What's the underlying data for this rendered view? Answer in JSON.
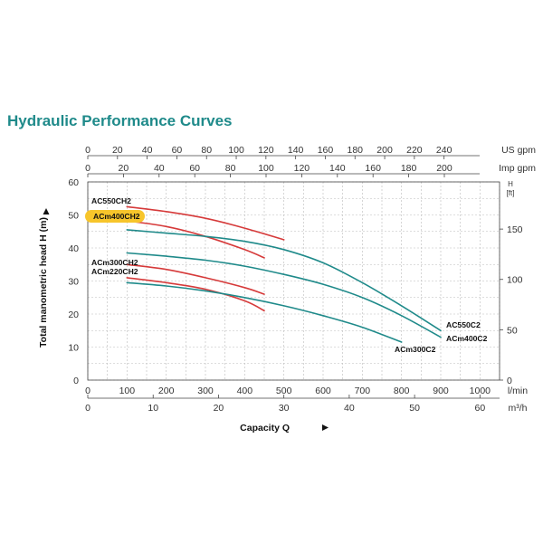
{
  "title": "Hydraulic Performance Curves",
  "chart_data": {
    "type": "line",
    "title": "Hydraulic Performance Curves",
    "xlabel": "Capacity Q",
    "ylabel": "Total manometric head H (m)",
    "xlim_lmin": [
      0,
      1050
    ],
    "ylim_m": [
      0,
      60
    ],
    "grid": true,
    "axes": {
      "us_gpm": {
        "unit": "US gpm",
        "ticks": [
          "0",
          "20",
          "40",
          "60",
          "80",
          "100",
          "120",
          "140",
          "160",
          "180",
          "200",
          "220",
          "240"
        ]
      },
      "imp_gpm": {
        "unit": "Imp gpm",
        "ticks": [
          "0",
          "20",
          "40",
          "60",
          "80",
          "100",
          "120",
          "140",
          "160",
          "180",
          "200"
        ]
      },
      "lmin": {
        "unit": "l/min",
        "ticks": [
          "0",
          "100",
          "200",
          "300",
          "400",
          "500",
          "600",
          "700",
          "800",
          "900",
          "1000"
        ]
      },
      "m3h": {
        "unit": "m³/h",
        "ticks": [
          "0",
          "10",
          "20",
          "30",
          "40",
          "50",
          "60"
        ]
      },
      "head_m": {
        "ticks": [
          "0",
          "10",
          "20",
          "30",
          "40",
          "50",
          "60"
        ]
      },
      "head_ft": {
        "unit": "H\n[ft]",
        "unit_top": "H",
        "unit_bottom": "[ft]",
        "ticks": [
          "0",
          "50",
          "100",
          "150"
        ]
      }
    },
    "series": [
      {
        "name": "AC550CH2",
        "color": "#d63a3a",
        "x": [
          100,
          200,
          300,
          400,
          500
        ],
        "y": [
          52.5,
          51,
          49,
          46,
          42.5
        ]
      },
      {
        "name": "ACm400CH2",
        "color": "#d63a3a",
        "x": [
          100,
          200,
          300,
          400,
          450
        ],
        "y": [
          48.2,
          46.5,
          43.5,
          39.5,
          37
        ]
      },
      {
        "name": "ACm300CH2",
        "color": "#d63a3a",
        "x": [
          100,
          200,
          300,
          400,
          450
        ],
        "y": [
          35,
          33.5,
          31,
          28,
          26
        ]
      },
      {
        "name": "ACm220CH2",
        "color": "#d63a3a",
        "x": [
          100,
          200,
          300,
          400,
          450
        ],
        "y": [
          31,
          29.5,
          27.5,
          24,
          21
        ]
      },
      {
        "name": "AC550C2",
        "color": "#1f8a8a",
        "x": [
          100,
          200,
          300,
          400,
          500,
          600,
          700,
          800,
          900
        ],
        "y": [
          45.5,
          44.5,
          43.5,
          42,
          39.5,
          35.5,
          29.5,
          22.5,
          15
        ]
      },
      {
        "name": "ACm400C2",
        "color": "#1f8a8a",
        "x": [
          100,
          200,
          300,
          400,
          500,
          600,
          700,
          800,
          900
        ],
        "y": [
          38.5,
          37.5,
          36.3,
          34.5,
          32,
          29,
          25,
          19.5,
          13
        ]
      },
      {
        "name": "ACm300C2",
        "color": "#1f8a8a",
        "x": [
          100,
          200,
          300,
          400,
          500,
          600,
          700,
          800
        ],
        "y": [
          29.5,
          28.5,
          27,
          25,
          22.5,
          19.5,
          16,
          11.5
        ]
      }
    ],
    "labels": {
      "AC550CH2": "AC550CH2",
      "ACm400CH2": "ACm400CH2",
      "ACm300CH2": "ACm300CH2",
      "ACm220CH2": "ACm220CH2",
      "AC550C2": "AC550C2",
      "ACm400C2": "ACm400C2",
      "ACm300C2": "ACm300C2"
    },
    "highlight_color": "#f7c52b"
  }
}
